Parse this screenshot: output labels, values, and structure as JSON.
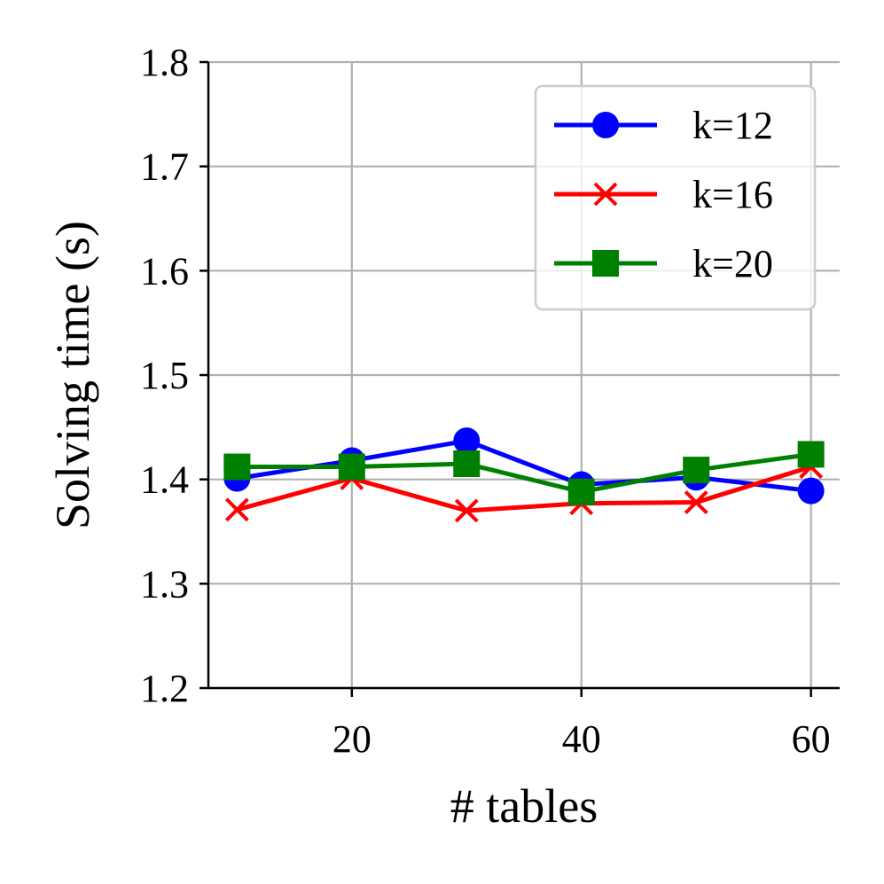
{
  "chart_data": {
    "type": "line",
    "title": "",
    "xlabel": "# tables",
    "ylabel": "Solving time (s)",
    "x": [
      10,
      20,
      30,
      40,
      50,
      60
    ],
    "xlim": [
      7.5,
      62.5
    ],
    "ylim": [
      1.2,
      1.8
    ],
    "xticks": [
      20,
      40,
      60
    ],
    "xtick_labels": [
      "20",
      "40",
      "60"
    ],
    "yticks": [
      1.2,
      1.3,
      1.4,
      1.5,
      1.6,
      1.7,
      1.8
    ],
    "ytick_labels": [
      "1.2",
      "1.3",
      "1.4",
      "1.5",
      "1.6",
      "1.7",
      "1.8"
    ],
    "grid": true,
    "legend_position": "top-right",
    "series": [
      {
        "name": "k=12",
        "color": "#0000ff",
        "marker": "circle",
        "values": [
          1.401,
          1.418,
          1.437,
          1.395,
          1.402,
          1.389
        ]
      },
      {
        "name": "k=16",
        "color": "#ff0000",
        "marker": "x",
        "values": [
          1.371,
          1.401,
          1.37,
          1.377,
          1.378,
          1.412
        ]
      },
      {
        "name": "k=20",
        "color": "#008000",
        "marker": "square",
        "values": [
          1.412,
          1.412,
          1.415,
          1.388,
          1.409,
          1.424
        ]
      }
    ]
  }
}
